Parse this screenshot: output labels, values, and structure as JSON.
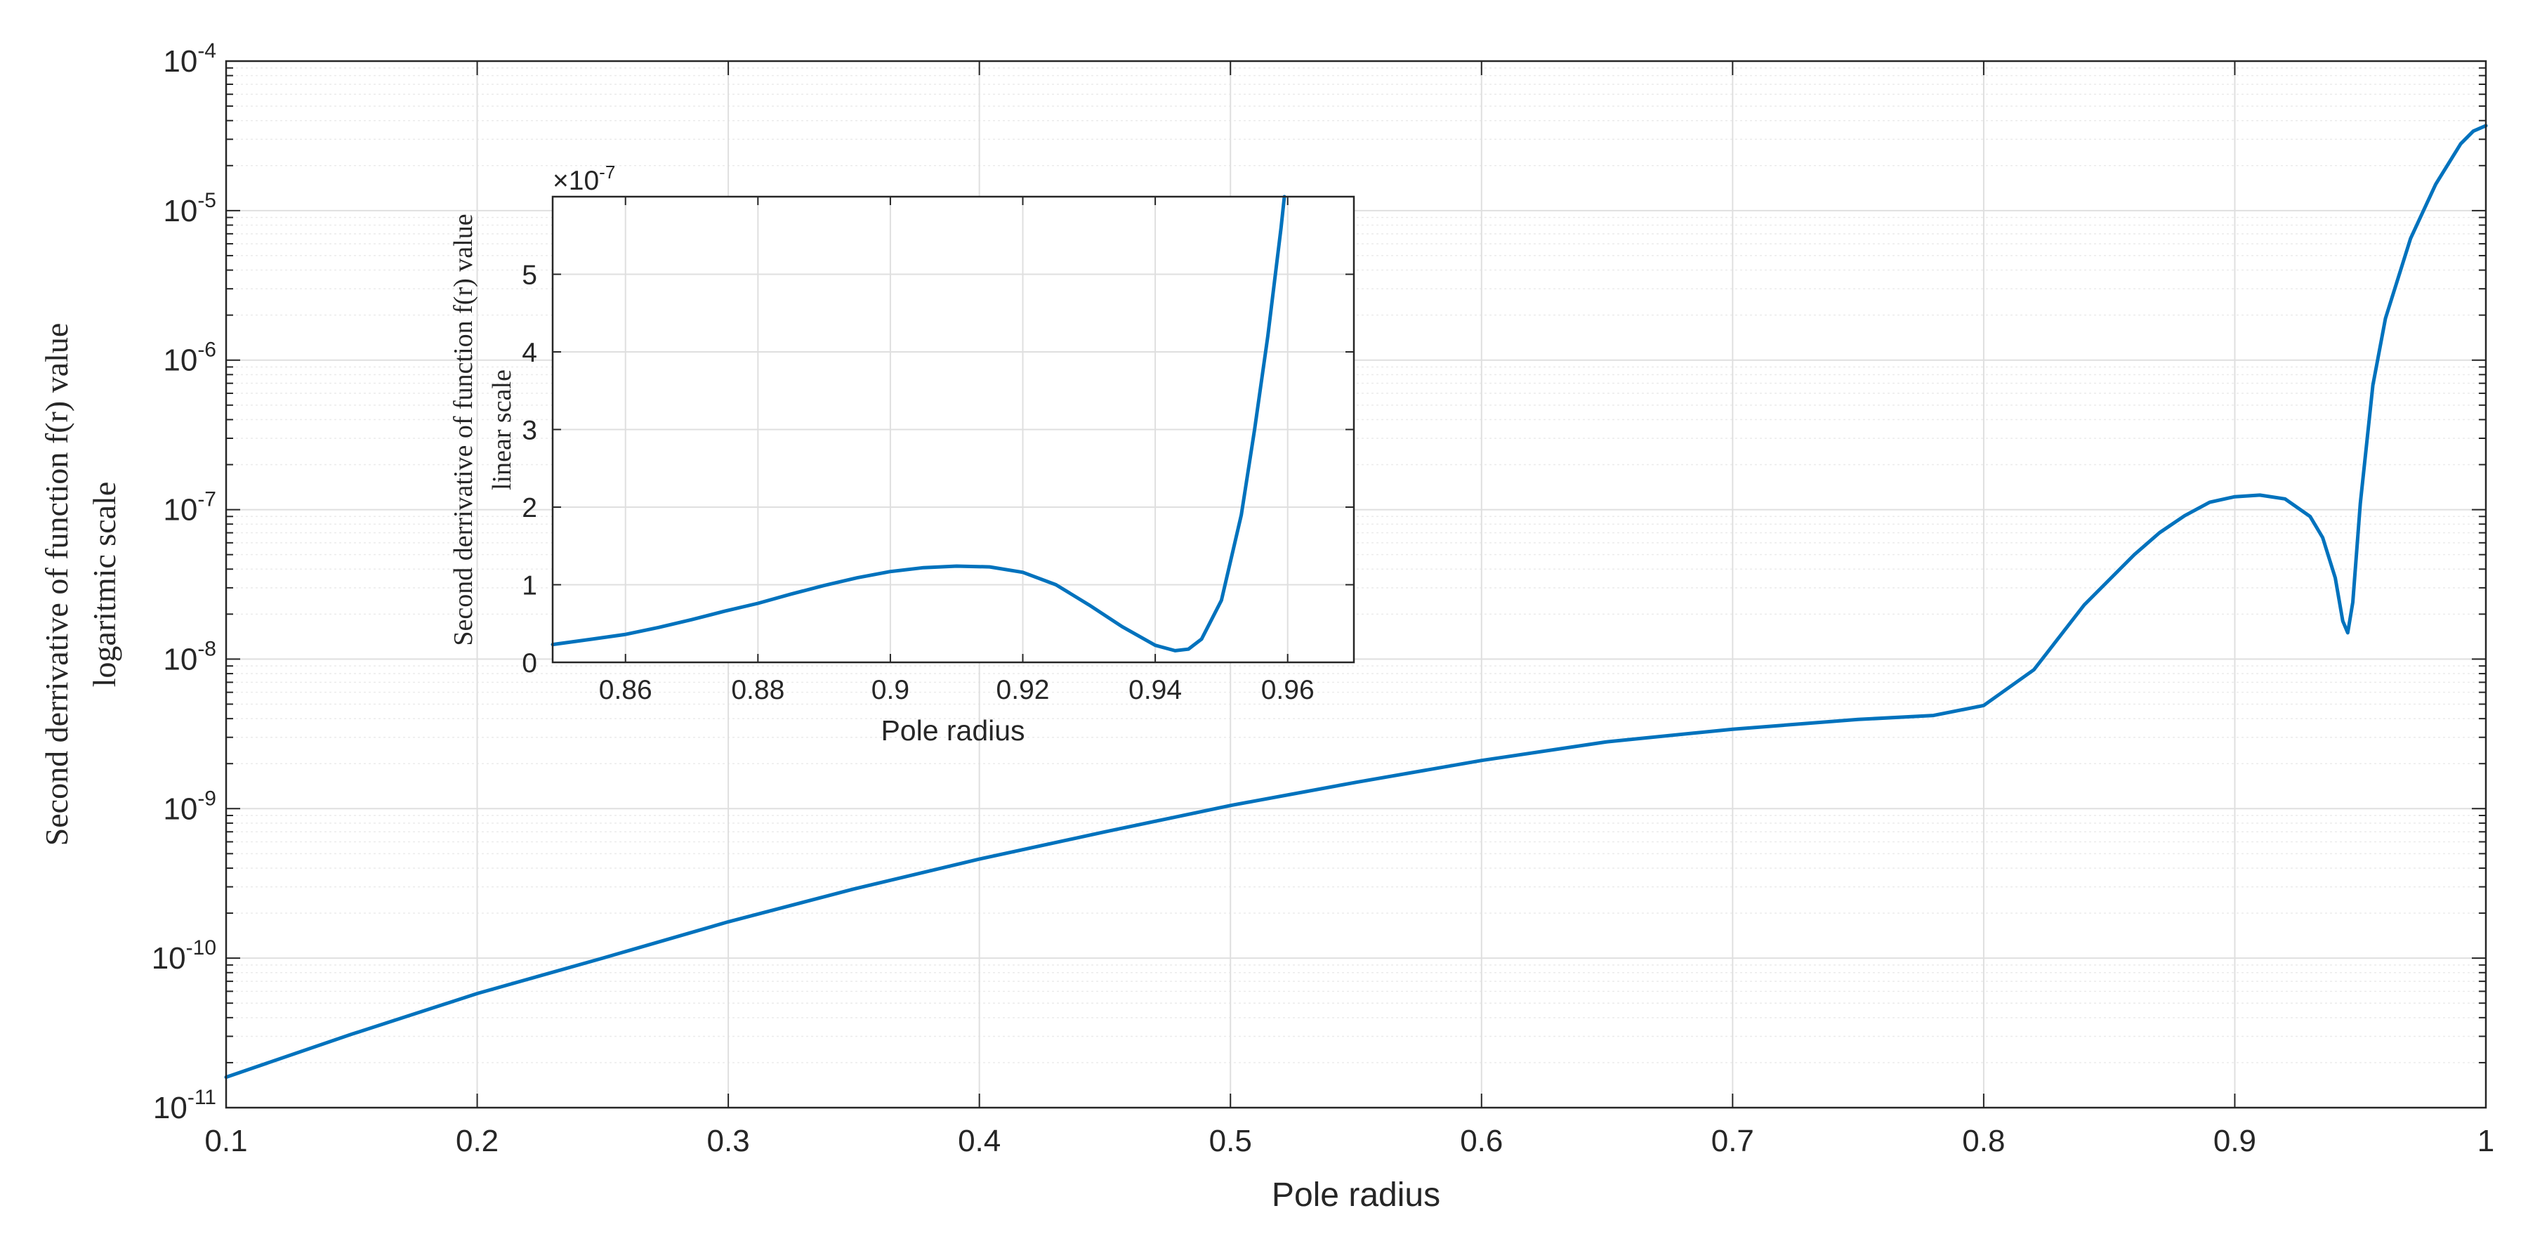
{
  "chart_data": [
    {
      "type": "line",
      "panel": "main",
      "xlabel": "Pole radius",
      "ylabel_line1": "Second derrivative of function f(r) value",
      "ylabel_line2": "logaritmic scale",
      "xlim": [
        0.1,
        1.0
      ],
      "ylim": [
        1e-11,
        0.0001
      ],
      "yscale": "log",
      "grid": true,
      "minor_grid": true,
      "x_ticks": [
        "0.1",
        "0.2",
        "0.3",
        "0.4",
        "0.5",
        "0.6",
        "0.7",
        "0.8",
        "0.9",
        "1"
      ],
      "y_ticks": [
        {
          "base": "10",
          "exp": "-11"
        },
        {
          "base": "10",
          "exp": "-10"
        },
        {
          "base": "10",
          "exp": "-9"
        },
        {
          "base": "10",
          "exp": "-8"
        },
        {
          "base": "10",
          "exp": "-7"
        },
        {
          "base": "10",
          "exp": "-6"
        },
        {
          "base": "10",
          "exp": "-5"
        },
        {
          "base": "10",
          "exp": "-4"
        }
      ],
      "line_color": "#0072BD",
      "series": [
        {
          "x": [
            0.1,
            0.15,
            0.2,
            0.25,
            0.3,
            0.35,
            0.4,
            0.45,
            0.5,
            0.55,
            0.6,
            0.65,
            0.7,
            0.75,
            0.78,
            0.8,
            0.82,
            0.84,
            0.86,
            0.87,
            0.88,
            0.89,
            0.9,
            0.91,
            0.92,
            0.93,
            0.935,
            0.94,
            0.943,
            0.945,
            0.947,
            0.95,
            0.955,
            0.96,
            0.97,
            0.98,
            0.99,
            0.995,
            1.0
          ],
          "y": [
            1.6e-11,
            3.1e-11,
            5.8e-11,
            1e-10,
            1.75e-10,
            2.9e-10,
            4.6e-10,
            7e-10,
            1.05e-09,
            1.5e-09,
            2.1e-09,
            2.8e-09,
            3.4e-09,
            3.95e-09,
            4.2e-09,
            4.9e-09,
            8.5e-09,
            2.3e-08,
            5e-08,
            7e-08,
            9.1e-08,
            1.12e-07,
            1.22e-07,
            1.25e-07,
            1.18e-07,
            9e-08,
            6.5e-08,
            3.5e-08,
            1.8e-08,
            1.5e-08,
            2.4e-08,
            1.1e-07,
            6.8e-07,
            1.9e-06,
            6.5e-06,
            1.5e-05,
            2.8e-05,
            3.4e-05,
            3.7e-05
          ]
        }
      ]
    },
    {
      "type": "line",
      "panel": "inset",
      "xlabel": "Pole radius",
      "ylabel_line1": "Second derrivative of function f(r) value",
      "ylabel_line2": "linear scale",
      "y_multiplier": {
        "prefix": "×10",
        "exp": "-7"
      },
      "xlim": [
        0.849,
        0.97
      ],
      "ylim": [
        0,
        6e-07
      ],
      "yscale": "linear",
      "grid": true,
      "x_ticks": [
        "0.86",
        "0.88",
        "0.9",
        "0.92",
        "0.94",
        "0.96"
      ],
      "y_ticks": [
        "0",
        "1",
        "2",
        "3",
        "4",
        "5"
      ],
      "line_color": "#0072BD",
      "series": [
        {
          "x": [
            0.849,
            0.855,
            0.86,
            0.865,
            0.87,
            0.875,
            0.88,
            0.885,
            0.89,
            0.895,
            0.9,
            0.905,
            0.91,
            0.915,
            0.92,
            0.925,
            0.93,
            0.935,
            0.94,
            0.943,
            0.945,
            0.947,
            0.95,
            0.953,
            0.955,
            0.957,
            0.959,
            0.9595
          ],
          "y": [
            2.3e-08,
            3e-08,
            3.6e-08,
            4.5e-08,
            5.5e-08,
            6.6e-08,
            7.6e-08,
            8.8e-08,
            9.9e-08,
            1.09e-07,
            1.17e-07,
            1.22e-07,
            1.24e-07,
            1.23e-07,
            1.16e-07,
            1e-07,
            7.4e-08,
            4.6e-08,
            2.2e-08,
            1.5e-08,
            1.7e-08,
            3e-08,
            8e-08,
            1.9e-07,
            3e-07,
            4.2e-07,
            5.6e-07,
            6e-07
          ]
        }
      ]
    }
  ]
}
